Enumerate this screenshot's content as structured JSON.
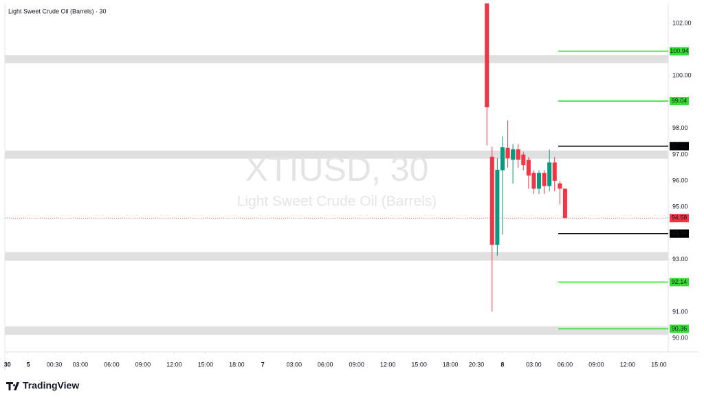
{
  "chart_data": {
    "type": "candlestick",
    "title": "Light Sweet Crude Oil (Barrels) · 30",
    "watermark": {
      "symbol": "XTIUSD, 30",
      "name": "Light Sweet Crude Oil (Barrels)"
    },
    "brand": "TradingView",
    "x": [
      92,
      93,
      94,
      95,
      96,
      97,
      98,
      99,
      100,
      101,
      102,
      103,
      104,
      105,
      106,
      107
    ],
    "open": [
      102.76,
      96.92,
      93.56,
      96.4,
      97.26,
      96.8,
      97.2,
      97.0,
      96.8,
      96.3,
      95.7,
      96.3,
      95.8,
      96.7,
      95.9,
      95.7
    ],
    "high": [
      102.76,
      97.3,
      96.86,
      97.7,
      98.3,
      97.4,
      97.4,
      97.1,
      96.9,
      96.4,
      96.4,
      96.4,
      97.2,
      96.9,
      96.0,
      95.7
    ],
    "low": [
      97.35,
      91.02,
      93.14,
      93.95,
      96.5,
      95.9,
      96.5,
      96.4,
      95.7,
      95.5,
      95.5,
      95.5,
      95.6,
      95.6,
      95.1,
      94.58
    ],
    "close": [
      98.8,
      93.56,
      96.42,
      97.28,
      96.86,
      97.2,
      96.8,
      96.6,
      96.2,
      95.7,
      96.3,
      95.8,
      96.7,
      96.0,
      95.7,
      94.58
    ],
    "up_color": "#089981",
    "down_color": "#f23645",
    "xlim": [
      -0.5,
      126.8
    ],
    "xticks": [
      {
        "value": 0,
        "label": "30"
      },
      {
        "value": 4,
        "label": "5"
      },
      {
        "value": 9,
        "label": "00:30"
      },
      {
        "value": 14,
        "label": "03:00"
      },
      {
        "value": 20,
        "label": "06:00"
      },
      {
        "value": 26,
        "label": "09:00"
      },
      {
        "value": 32,
        "label": "12:00"
      },
      {
        "value": 38,
        "label": "15:00"
      },
      {
        "value": 44,
        "label": "18:00"
      },
      {
        "value": 49,
        "label": "7"
      },
      {
        "value": 55,
        "label": "03:00"
      },
      {
        "value": 61,
        "label": "06:00"
      },
      {
        "value": 67,
        "label": "09:00"
      },
      {
        "value": 73,
        "label": "12:00"
      },
      {
        "value": 79,
        "label": "15:00"
      },
      {
        "value": 85,
        "label": "18:00"
      },
      {
        "value": 90,
        "label": "20:30"
      },
      {
        "value": 95,
        "label": "8"
      },
      {
        "value": 101,
        "label": "03:00"
      },
      {
        "value": 107,
        "label": "06:00"
      },
      {
        "value": 113,
        "label": "09:00"
      },
      {
        "value": 119,
        "label": "12:00"
      },
      {
        "value": 125,
        "label": "15:00"
      }
    ],
    "ylim": [
      89.48,
      102.76
    ],
    "yticks": [
      {
        "value": 102,
        "label": "102.00"
      },
      {
        "value": 100,
        "label": "100.00"
      },
      {
        "value": 98,
        "label": "98.00"
      },
      {
        "value": 97,
        "label": "97.00"
      },
      {
        "value": 96,
        "label": "96.00"
      },
      {
        "value": 95,
        "label": "95.00"
      },
      {
        "value": 93,
        "label": "93.00"
      },
      {
        "value": 91,
        "label": "91.00"
      },
      {
        "value": 90,
        "label": "90.00"
      }
    ],
    "zones": [
      [
        100.48,
        100.79
      ],
      [
        96.84,
        97.15
      ],
      [
        92.96,
        93.28
      ],
      [
        90.13,
        90.45
      ]
    ],
    "zone_color": "#e0e0e0",
    "levels": [
      {
        "value": 100.94,
        "color": "#33dd33"
      },
      {
        "value": 99.04,
        "color": "#33dd33"
      },
      {
        "value": 97.32,
        "color": "#000000"
      },
      {
        "value": 93.99,
        "color": "#000000"
      },
      {
        "value": 92.14,
        "color": "#33dd33"
      },
      {
        "value": 90.36,
        "color": "#33dd33"
      }
    ],
    "last": 94.58,
    "last_color": "#f23645"
  }
}
